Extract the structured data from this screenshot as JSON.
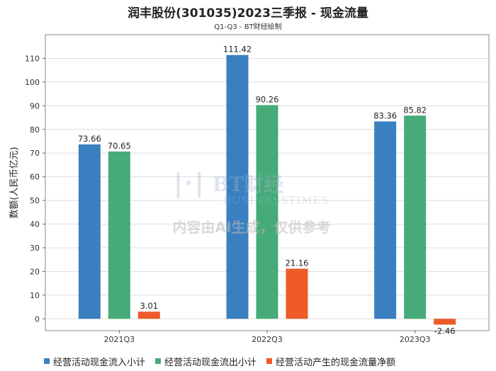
{
  "chart_data": {
    "type": "bar",
    "title": "润丰股份(301035)2023三季报 - 现金流量",
    "subtitle": "Q1-Q3 - BT财经绘制",
    "xlabel": "",
    "ylabel": "数额(人民币亿元)",
    "ylim": [
      -5,
      120
    ],
    "yticks": [
      0,
      10,
      20,
      30,
      40,
      50,
      60,
      70,
      80,
      90,
      100,
      110
    ],
    "grid": true,
    "categories": [
      "2021Q3",
      "2022Q3",
      "2023Q3"
    ],
    "series": [
      {
        "name": "经营活动现金流入小计",
        "color": "#3a80c0",
        "values": [
          73.66,
          111.42,
          83.36
        ],
        "labels": [
          "73.66",
          "111.42",
          "83.36"
        ]
      },
      {
        "name": "经营活动现金流出小计",
        "color": "#46ab78",
        "values": [
          70.65,
          90.26,
          85.82
        ],
        "labels": [
          "70.65",
          "90.26",
          "85.82"
        ]
      },
      {
        "name": "经营活动产生的现金流量净额",
        "color": "#ee5a2a",
        "values": [
          3.01,
          21.16,
          -2.46
        ],
        "labels": [
          "3.01",
          "21.16",
          "-2.46"
        ]
      }
    ],
    "legend_position": "bottom"
  },
  "watermark": {
    "brand": "BT财经",
    "sub": "BUSINESSTIMES",
    "note": "内容由AI生成，仅供参考"
  }
}
